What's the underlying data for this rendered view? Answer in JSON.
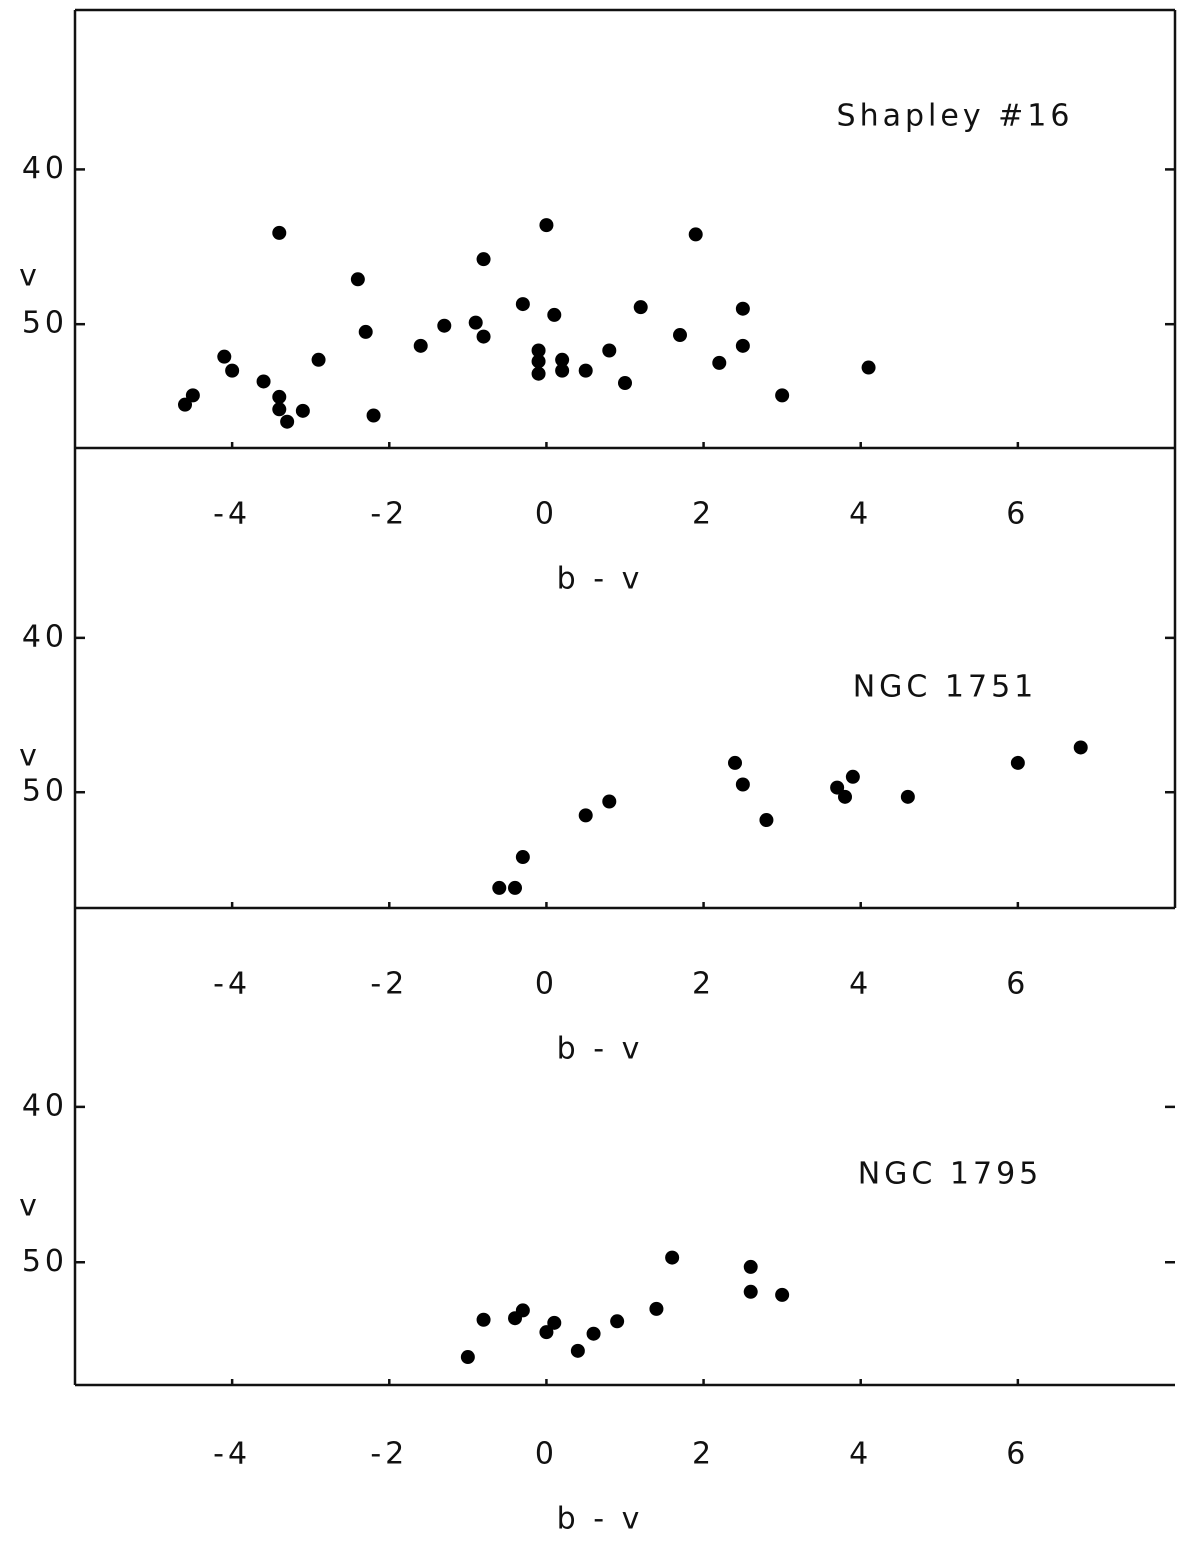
{
  "chart_data": [
    {
      "type": "scatter",
      "title": "Shapley #16",
      "xlabel": "b - v",
      "ylabel": "v",
      "color": "#000000",
      "grid": false,
      "x": [
        -4.6,
        -4.5,
        -4.1,
        -4.0,
        -3.6,
        -3.4,
        -3.4,
        -3.4,
        -3.3,
        -3.1,
        -2.9,
        -2.4,
        -2.3,
        -2.2,
        -1.6,
        -1.3,
        -0.9,
        -0.8,
        -0.8,
        -0.3,
        -0.1,
        -0.1,
        -0.1,
        0.0,
        0.1,
        0.2,
        0.2,
        0.5,
        0.8,
        1.0,
        1.2,
        1.7,
        1.9,
        2.2,
        2.5,
        2.5,
        3.0,
        4.1
      ],
      "values": [
        55.2,
        54.6,
        52.1,
        53.0,
        53.7,
        44.1,
        54.7,
        55.5,
        56.3,
        55.6,
        52.3,
        47.1,
        50.5,
        55.9,
        51.4,
        50.1,
        49.9,
        45.8,
        50.8,
        48.7,
        51.7,
        52.4,
        53.2,
        43.6,
        49.4,
        52.3,
        53.0,
        53.0,
        51.7,
        53.8,
        48.9,
        50.7,
        44.2,
        52.5,
        49.0,
        51.4,
        54.6,
        52.8
      ],
      "xlim": [
        -6,
        8
      ],
      "ylim": [
        58,
        29.7
      ],
      "xticks": [
        -4,
        -2,
        0,
        2,
        4,
        6
      ],
      "yticks": [
        40,
        50
      ]
    },
    {
      "type": "scatter",
      "title": "NGC 1751",
      "xlabel": "b - v",
      "ylabel": "v",
      "color": "#000000",
      "grid": false,
      "x": [
        -0.6,
        -0.4,
        -0.3,
        0.5,
        0.8,
        2.4,
        2.5,
        2.8,
        3.7,
        3.8,
        3.9,
        4.6,
        6.0,
        6.8
      ],
      "values": [
        56.2,
        56.2,
        54.2,
        51.5,
        50.6,
        48.1,
        49.5,
        51.8,
        49.7,
        50.3,
        49.0,
        50.3,
        48.1,
        47.1
      ],
      "xlim": [
        -6,
        8
      ],
      "ylim": [
        57.5,
        27.7
      ],
      "xticks": [
        -4,
        -2,
        0,
        2,
        4,
        6
      ],
      "yticks": [
        40,
        50
      ]
    },
    {
      "type": "scatter",
      "title": "NGC 1795",
      "xlabel": "b - v",
      "ylabel": "v",
      "color": "#000000",
      "grid": false,
      "x": [
        -1.0,
        -0.8,
        -0.4,
        -0.3,
        0.0,
        0.1,
        0.4,
        0.6,
        0.9,
        1.4,
        1.6,
        2.6,
        2.6,
        3.0
      ],
      "values": [
        56.1,
        53.7,
        53.6,
        53.1,
        54.5,
        53.9,
        55.7,
        54.6,
        53.8,
        53.0,
        49.7,
        51.9,
        50.3,
        52.1
      ],
      "xlim": [
        -6,
        8
      ],
      "ylim": [
        57.9,
        27.2
      ],
      "xticks": [
        -4,
        -2,
        0,
        2,
        4,
        6
      ],
      "yticks": [
        40,
        50
      ]
    }
  ]
}
